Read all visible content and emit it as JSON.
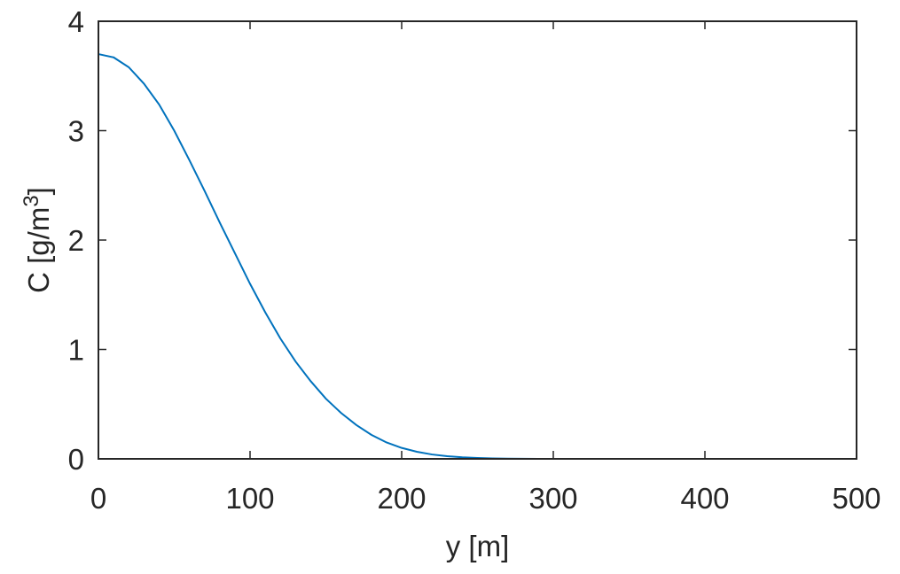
{
  "chart_data": {
    "type": "line",
    "title": "",
    "xlabel": "y [m]",
    "ylabel": {
      "text": "C [g/m",
      "superscript": "3",
      "suffix": "]"
    },
    "xlim": [
      0,
      500
    ],
    "ylim": [
      0,
      4
    ],
    "xticks": [
      0,
      100,
      200,
      300,
      400,
      500
    ],
    "yticks": [
      0,
      1,
      2,
      3,
      4
    ],
    "xtick_labels": [
      "0",
      "100",
      "200",
      "300",
      "400",
      "500"
    ],
    "ytick_labels": [
      "0",
      "1",
      "2",
      "3",
      "4"
    ],
    "grid": false,
    "box": true,
    "series": [
      {
        "color": "#0072BD",
        "x": [
          0,
          10,
          20,
          30,
          40,
          50,
          60,
          70,
          80,
          90,
          100,
          110,
          120,
          130,
          140,
          150,
          160,
          170,
          180,
          190,
          200,
          210,
          220,
          230,
          240,
          250,
          260,
          270,
          280,
          290,
          300,
          350,
          400,
          450,
          500
        ],
        "y": [
          3.7,
          3.67,
          3.58,
          3.43,
          3.24,
          3.0,
          2.73,
          2.45,
          2.16,
          1.88,
          1.6,
          1.34,
          1.1,
          0.89,
          0.71,
          0.55,
          0.42,
          0.31,
          0.22,
          0.15,
          0.1,
          0.065,
          0.04,
          0.024,
          0.014,
          0.008,
          0.004,
          0.002,
          0.001,
          0.0005,
          0.0002,
          0.0,
          0.0,
          0.0,
          0.0
        ]
      }
    ]
  }
}
